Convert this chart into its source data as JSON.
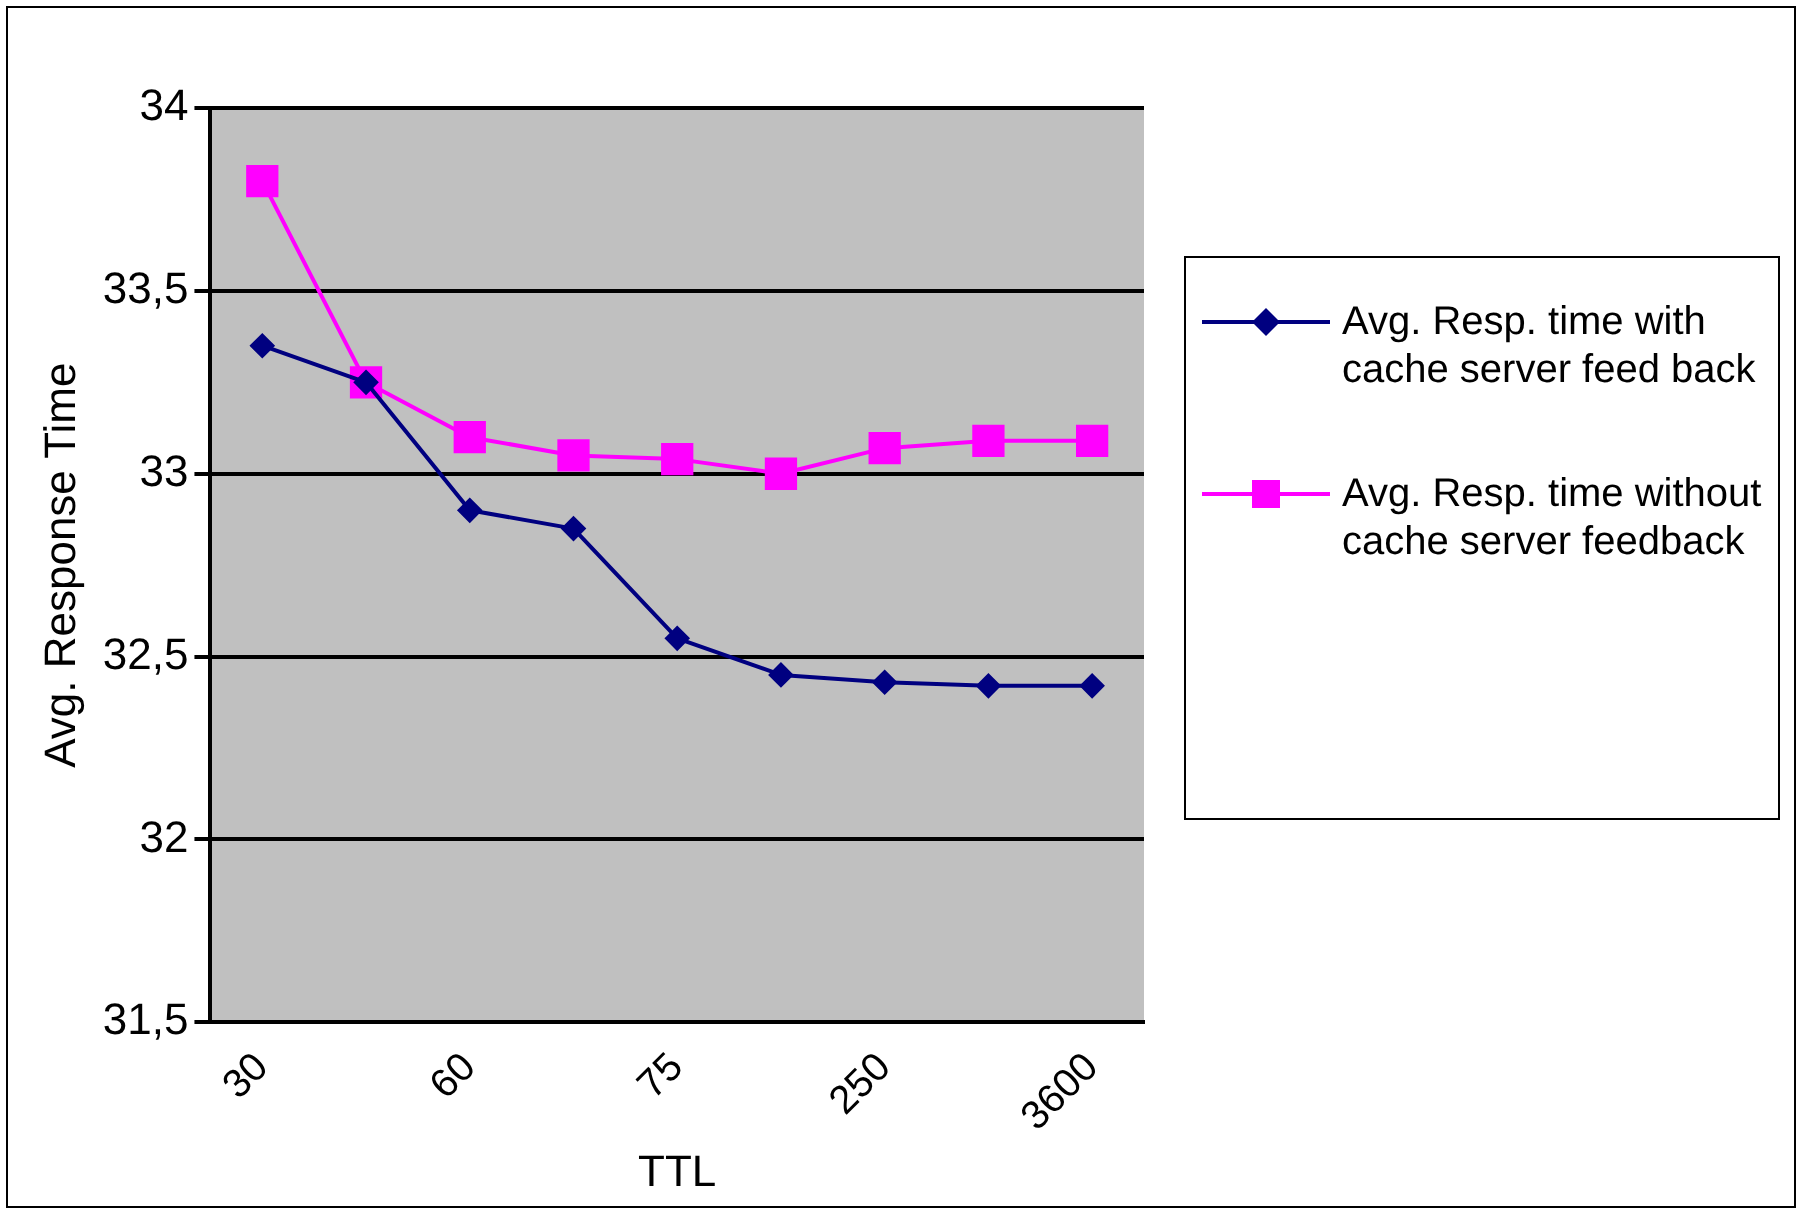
{
  "chart_data": {
    "type": "line",
    "xlabel": "TTL",
    "ylabel": "Avg. Response Time",
    "categories": [
      "30",
      null,
      "60",
      null,
      "75",
      null,
      "250",
      null,
      "3600"
    ],
    "series": [
      {
        "name": "Avg. Resp. time with cache server feed back",
        "color": "#000080",
        "marker": "diamond",
        "values": [
          33.35,
          33.25,
          32.9,
          32.85,
          32.55,
          32.45,
          32.43,
          32.42,
          32.42
        ]
      },
      {
        "name": "Avg. Resp. time without cache server feedback",
        "color": "#ff00ff",
        "marker": "square",
        "values": [
          33.8,
          33.25,
          33.1,
          33.05,
          33.04,
          33.0,
          33.07,
          33.09,
          33.09
        ]
      }
    ],
    "ylim": [
      31.5,
      34
    ],
    "yticks": [
      {
        "value": 31.5,
        "label": "31,5"
      },
      32,
      {
        "value": 32.5,
        "label": "32,5"
      },
      33,
      {
        "value": 33.5,
        "label": "33,5"
      },
      34
    ],
    "grid": "y",
    "legend": "right"
  }
}
